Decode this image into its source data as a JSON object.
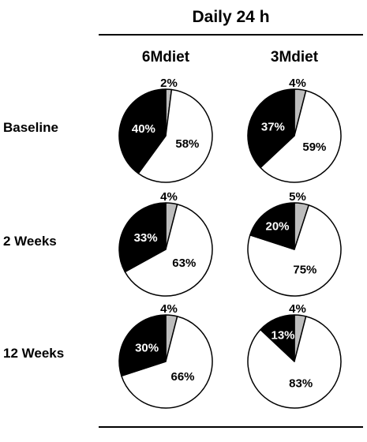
{
  "header": {
    "title": "Daily 24 h"
  },
  "columns": [
    "6Mdiet",
    "3Mdiet"
  ],
  "rows": [
    "Baseline",
    "2 Weeks",
    "12 Weeks"
  ],
  "colors": {
    "black_slice": "#000000",
    "gray_slice": "#bdbdbd",
    "white_slice": "#ffffff",
    "outline": "#000000"
  },
  "chart_data": {
    "type": "pie",
    "title": "Daily 24 h",
    "legend": "none",
    "slice_order": [
      "gray",
      "white",
      "black"
    ],
    "pies": [
      {
        "row": "Baseline",
        "column": "6Mdiet",
        "values": [
          2,
          58,
          40
        ],
        "labels": [
          "2%",
          "58%",
          "40%"
        ]
      },
      {
        "row": "Baseline",
        "column": "3Mdiet",
        "values": [
          4,
          59,
          37
        ],
        "labels": [
          "4%",
          "59%",
          "37%"
        ]
      },
      {
        "row": "2 Weeks",
        "column": "6Mdiet",
        "values": [
          4,
          63,
          33
        ],
        "labels": [
          "4%",
          "63%",
          "33%"
        ]
      },
      {
        "row": "2 Weeks",
        "column": "3Mdiet",
        "values": [
          5,
          75,
          20
        ],
        "labels": [
          "5%",
          "75%",
          "20%"
        ]
      },
      {
        "row": "12 Weeks",
        "column": "6Mdiet",
        "values": [
          4,
          66,
          30
        ],
        "labels": [
          "4%",
          "66%",
          "30%"
        ]
      },
      {
        "row": "12 Weeks",
        "column": "3Mdiet",
        "values": [
          4,
          83,
          13
        ],
        "labels": [
          "4%",
          "83%",
          "13%"
        ]
      }
    ]
  }
}
